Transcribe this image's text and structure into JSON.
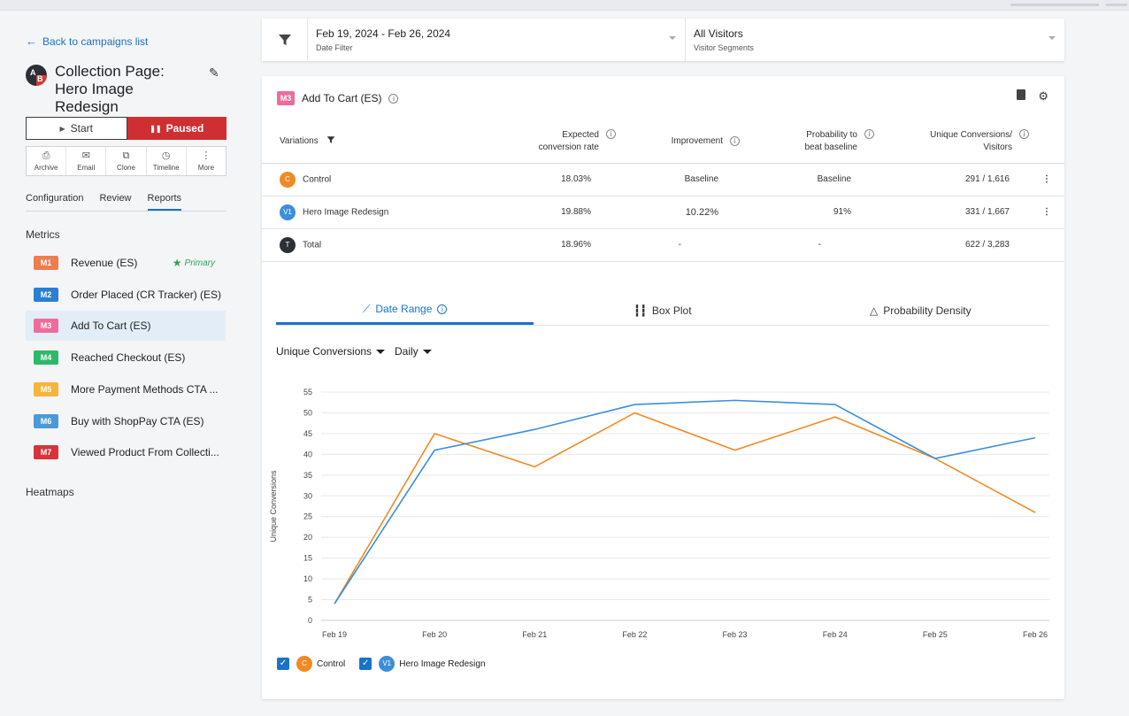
{
  "sidebar": {
    "back_label": "Back to campaigns list",
    "campaign_title": "Collection Page: Hero Image Redesign",
    "ab_letters": [
      "A",
      "B"
    ],
    "start_label": "Start",
    "paused_label": "Paused",
    "actions": [
      "Archive",
      "Email",
      "Clone",
      "Timeline",
      "More"
    ],
    "tabs": [
      "Configuration",
      "Review",
      "Reports"
    ],
    "active_tab": "Reports",
    "metrics_heading": "Metrics",
    "metrics": [
      {
        "code": "M1",
        "label": "Revenue (ES)",
        "color": "#ef7d4e",
        "primary": true
      },
      {
        "code": "M2",
        "label": "Order Placed (CR Tracker) (ES)",
        "color": "#2a7fd4"
      },
      {
        "code": "M3",
        "label": "Add To Cart (ES)",
        "color": "#ef6b9b",
        "selected": true
      },
      {
        "code": "M4",
        "label": "Reached Checkout (ES)",
        "color": "#2fb86a"
      },
      {
        "code": "M5",
        "label": "More Payment Methods CTA ...",
        "color": "#f5b53a"
      },
      {
        "code": "M6",
        "label": "Buy with ShopPay CTA (ES)",
        "color": "#4b9ad8"
      },
      {
        "code": "M7",
        "label": "Viewed Product From Collecti...",
        "color": "#d8333b"
      }
    ],
    "primary_label": "Primary",
    "heatmaps_label": "Heatmaps"
  },
  "filters": {
    "date_value": "Feb 19, 2024 - Feb 26, 2024",
    "date_caption": "Date Filter",
    "segment_value": "All Visitors",
    "segment_caption": "Visitor Segments"
  },
  "card": {
    "badge": "M3",
    "title": "Add To Cart (ES)",
    "columns": {
      "variations": "Variations",
      "expected": "Expected conversion rate",
      "improvement": "Improvement",
      "probability": "Probability to beat baseline",
      "unique": "Unique Conversions/ Visitors"
    },
    "rows": [
      {
        "badge": "C",
        "badge_color": "#f08a24",
        "name": "Control",
        "rate": "18.03%",
        "improvement": "Baseline",
        "probability": "Baseline",
        "conversions": "291 / 1,616",
        "menu": "⋮"
      },
      {
        "badge": "V1",
        "badge_color": "#3b8fd9",
        "name": "Hero Image Redesign",
        "rate": "19.88%",
        "improvement": "10.22%",
        "probability": "91%",
        "conversions": "331 / 1,667",
        "menu": "⋮"
      },
      {
        "badge": "T",
        "badge_color": "#2b2f36",
        "name": "Total",
        "rate": "18.96%",
        "improvement": "-",
        "probability": "-",
        "conversions": "622 / 3,283",
        "menu": ""
      }
    ],
    "chart_tabs": [
      "Date Range",
      "Box Plot",
      "Probability Density"
    ],
    "metric_select": "Unique Conversions",
    "interval_select": "Daily"
  },
  "chart_data": {
    "type": "line",
    "x": [
      "Feb 19",
      "Feb 20",
      "Feb 21",
      "Feb 22",
      "Feb 23",
      "Feb 24",
      "Feb 25",
      "Feb 26"
    ],
    "series": [
      {
        "name": "Control",
        "color": "#f08a24",
        "values": [
          4,
          45,
          37,
          50,
          41,
          49,
          39,
          26
        ]
      },
      {
        "name": "Hero Image Redesign",
        "color": "#3b8fd9",
        "values": [
          4,
          41,
          46,
          52,
          53,
          52,
          39,
          44
        ]
      }
    ],
    "ylabel": "Unique Conversions",
    "ylim": [
      0,
      55
    ],
    "yticks": [
      0,
      5,
      10,
      15,
      20,
      25,
      30,
      35,
      40,
      45,
      50,
      55
    ],
    "grid": true,
    "legend_position": "bottom-left"
  }
}
